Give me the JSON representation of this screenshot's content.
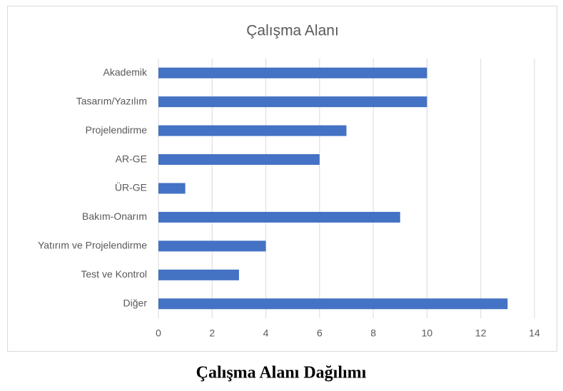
{
  "chart_data": {
    "type": "bar",
    "orientation": "horizontal",
    "title": "Çalışma Alanı",
    "categories": [
      "Akademik",
      "Tasarım/Yazılım",
      "Projelendirme",
      "AR-GE",
      "ÜR-GE",
      "Bakım-Onarım",
      "Yatırım ve Projelendirme",
      "Test ve Kontrol",
      "Diğer"
    ],
    "values": [
      10,
      10,
      7,
      6,
      1,
      9,
      4,
      3,
      13
    ],
    "color": "#4472c4",
    "xlim": [
      0,
      14
    ],
    "xticks": [
      0,
      2,
      4,
      6,
      8,
      10,
      12,
      14
    ],
    "grid": true
  },
  "caption": "Çalışma Alanı Dağılımı"
}
